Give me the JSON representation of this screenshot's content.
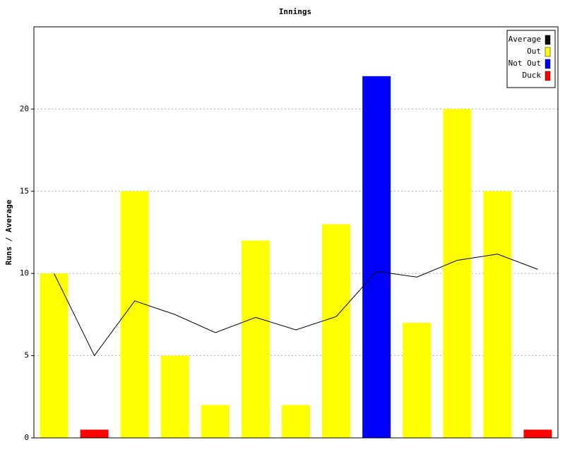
{
  "chart_data": {
    "type": "bar-line",
    "title": "Innings",
    "y_label": "Runs / Average",
    "categories": [
      null,
      null,
      null,
      null,
      null,
      null,
      null,
      null,
      null,
      null,
      null,
      null,
      null
    ],
    "series": [
      {
        "name": "Average",
        "type": "line",
        "color": "#000000",
        "values": [
          10,
          5,
          8.33,
          7.5,
          6.4,
          7.33,
          6.57,
          7.38,
          10.13,
          9.78,
          10.8,
          11.18,
          10.25
        ]
      },
      {
        "name": "Out",
        "type": "bar",
        "color": "#ffff00",
        "values": [
          10,
          null,
          15,
          5,
          2,
          12,
          2,
          13,
          null,
          7,
          20,
          15,
          null
        ]
      },
      {
        "name": "Not Out",
        "type": "bar",
        "color": "#0000ff",
        "values": [
          null,
          null,
          null,
          null,
          null,
          null,
          null,
          null,
          22,
          null,
          null,
          null,
          null
        ]
      },
      {
        "name": "Duck",
        "type": "bar",
        "color": "#ff0000",
        "values": [
          null,
          0.5,
          null,
          null,
          null,
          null,
          null,
          null,
          null,
          null,
          null,
          null,
          0.5
        ]
      }
    ],
    "ylim": [
      0,
      25
    ],
    "yticks": [
      0,
      5,
      10,
      15,
      20
    ],
    "grid": true,
    "legend": "top-right"
  }
}
